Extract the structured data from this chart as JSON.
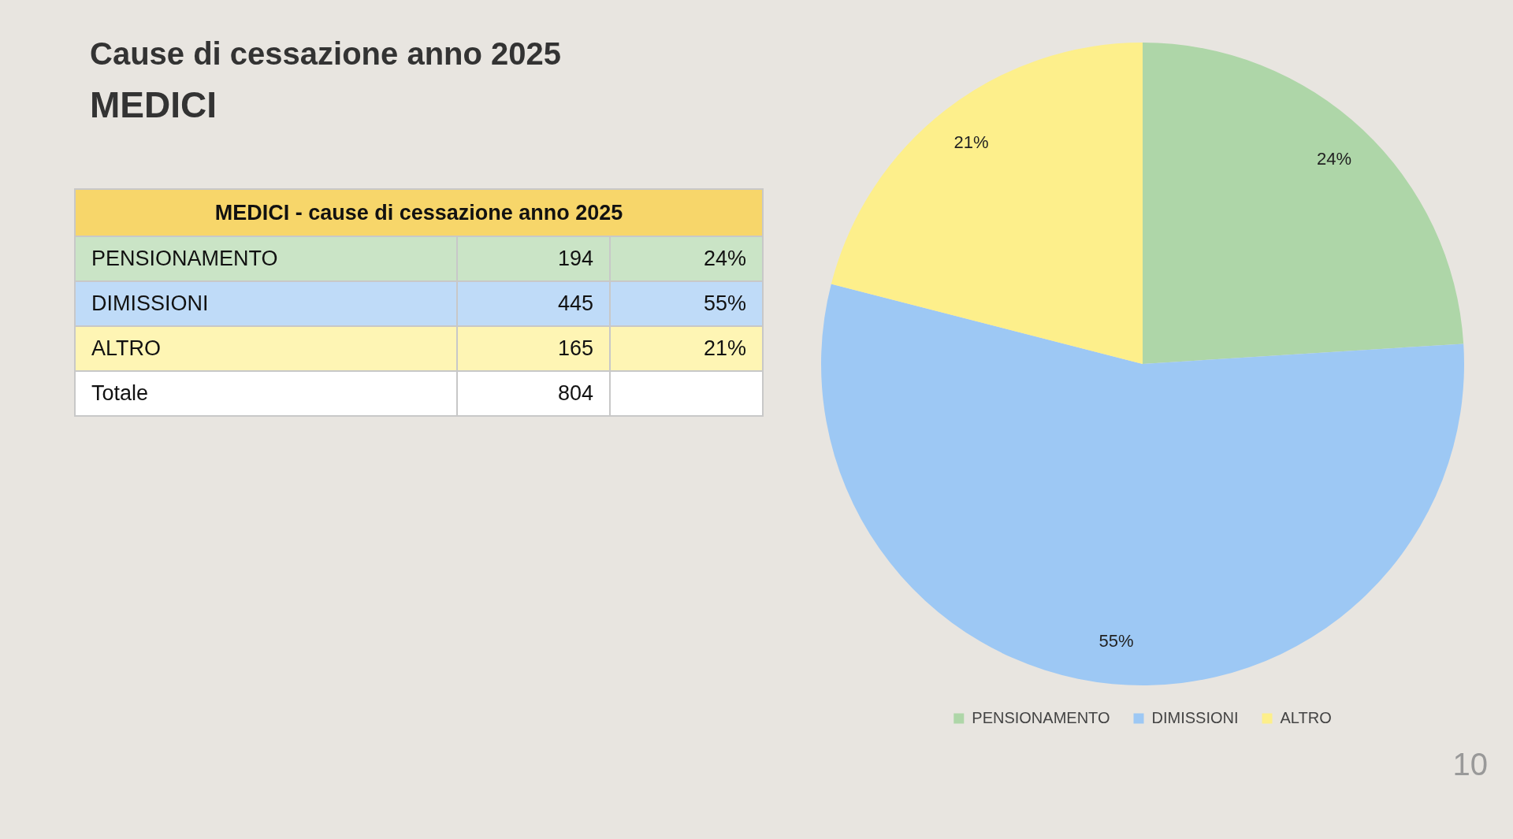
{
  "chart_data": {
    "type": "pie",
    "title": "Cause di cessazione anno 2025",
    "subtitle": "MEDICI",
    "categories": [
      "PENSIONAMENTO",
      "DIMISSIONI",
      "ALTRO"
    ],
    "values": [
      24,
      55,
      21
    ],
    "value_labels": [
      "24%",
      "55%",
      "21%"
    ],
    "colors": [
      "#aed6a8",
      "#9dc8f4",
      "#fdef8b"
    ],
    "legend": "bottom",
    "annotations": [
      "MEDICI - cause di cessazione anno 2025",
      "Totale",
      "804",
      "10",
      "194",
      "445",
      "165"
    ]
  }
}
